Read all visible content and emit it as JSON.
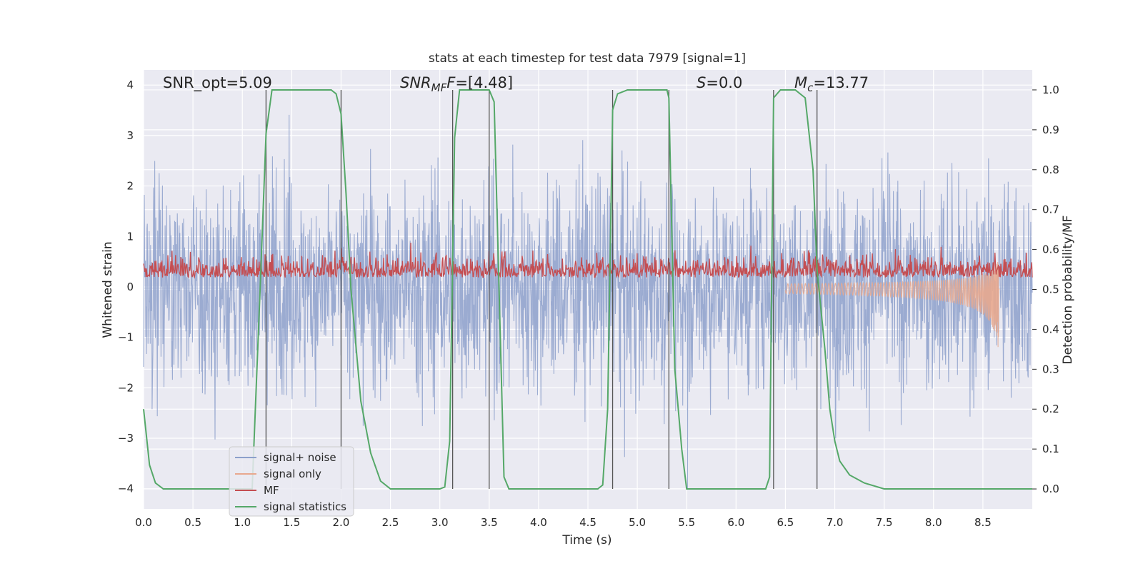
{
  "chart_data": {
    "type": "line",
    "title": "stats at each timestep for test data 7979 [signal=1]",
    "xlabel": "Time (s)",
    "ylabel_left": "Whitened strain",
    "ylabel_right": "Detection probability/MF",
    "xlim": [
      0,
      9.0
    ],
    "ylim_left": [
      -4.4,
      4.3
    ],
    "ylim_right": [
      -0.05,
      1.05
    ],
    "x_ticks": [
      0.0,
      0.5,
      1.0,
      1.5,
      2.0,
      2.5,
      3.0,
      3.5,
      4.0,
      4.5,
      5.0,
      5.5,
      6.0,
      6.5,
      7.0,
      7.5,
      8.0,
      8.5
    ],
    "x_tick_labels": [
      "0.0",
      "0.5",
      "1.0",
      "1.5",
      "2.0",
      "2.5",
      "3.0",
      "3.5",
      "4.0",
      "4.5",
      "5.0",
      "5.5",
      "6.0",
      "6.5",
      "7.0",
      "7.5",
      "8.0",
      "8.5"
    ],
    "y_left_ticks": [
      -4,
      -3,
      -2,
      -1,
      0,
      1,
      2,
      3,
      4
    ],
    "y_left_tick_labels": [
      "−4",
      "−3",
      "−2",
      "−1",
      "0",
      "1",
      "2",
      "3",
      "4"
    ],
    "y_right_ticks": [
      0.0,
      0.1,
      0.2,
      0.3,
      0.4,
      0.5,
      0.6,
      0.7,
      0.8,
      0.9,
      1.0
    ],
    "y_right_tick_labels": [
      "0.0",
      "0.1",
      "0.2",
      "0.3",
      "0.4",
      "0.5",
      "0.6",
      "0.7",
      "0.8",
      "0.9",
      "1.0"
    ],
    "annotations": {
      "snr_opt": "SNR_opt=5.09",
      "snr_mf_main": "SNR",
      "snr_mf_sub": "MF",
      "snr_mf_rest": "=[4.48]",
      "s_main": "S",
      "s_rest": "=0.0",
      "mc_main": "M",
      "mc_sub": "c",
      "mc_rest": "=13.77"
    },
    "detection_boundaries": [
      1.24,
      2.0,
      3.13,
      3.5,
      4.75,
      5.32,
      6.38,
      6.82
    ],
    "series": [
      {
        "name": "signal+ noise",
        "color": "#8da0cb",
        "noise_amplitude": 2.3
      },
      {
        "name": "signal only",
        "color": "#e8a88e",
        "chirp_end": 8.67,
        "chirp_peak_amplitude": 1.1
      },
      {
        "name": "MF",
        "color": "#c44e52",
        "mean": 0.55,
        "noise_amplitude": 0.04
      },
      {
        "name": "signal statistics",
        "color": "#55a868",
        "axis": "right",
        "x": [
          0.0,
          0.06,
          0.12,
          0.2,
          0.3,
          1.1,
          1.18,
          1.24,
          1.3,
          1.4,
          1.9,
          1.95,
          2.0,
          2.05,
          2.1,
          2.2,
          2.3,
          2.4,
          2.5,
          2.6,
          3.0,
          3.05,
          3.1,
          3.15,
          3.2,
          3.3,
          3.5,
          3.55,
          3.6,
          3.65,
          3.7,
          3.8,
          4.6,
          4.65,
          4.7,
          4.75,
          4.8,
          4.9,
          5.3,
          5.32,
          5.38,
          5.45,
          5.5,
          6.3,
          6.34,
          6.38,
          6.45,
          6.6,
          6.7,
          6.78,
          6.82,
          6.9,
          6.95,
          7.0,
          7.05,
          7.15,
          7.3,
          7.5,
          9.0
        ],
        "y": [
          0.2,
          0.06,
          0.015,
          0.0,
          0.0,
          0.0,
          0.5,
          0.89,
          1.0,
          1.0,
          1.0,
          0.99,
          0.94,
          0.74,
          0.5,
          0.22,
          0.09,
          0.02,
          0.0,
          0.0,
          0.0,
          0.005,
          0.12,
          0.88,
          1.0,
          1.0,
          1.0,
          0.97,
          0.5,
          0.03,
          0.0,
          0.0,
          0.0,
          0.01,
          0.2,
          0.95,
          0.99,
          1.0,
          1.0,
          0.98,
          0.3,
          0.1,
          0.0,
          0.0,
          0.03,
          0.98,
          1.0,
          1.0,
          0.98,
          0.8,
          0.55,
          0.35,
          0.2,
          0.12,
          0.07,
          0.035,
          0.015,
          0.0,
          0.0
        ]
      }
    ],
    "legend": {
      "placement": "lower-left",
      "entries": [
        "signal+ noise",
        "signal only",
        "MF",
        "signal statistics"
      ]
    },
    "grid": true,
    "colors": {
      "axes_bg": "#eaeaf2",
      "grid": "#ffffff",
      "vline": "#555555"
    }
  }
}
